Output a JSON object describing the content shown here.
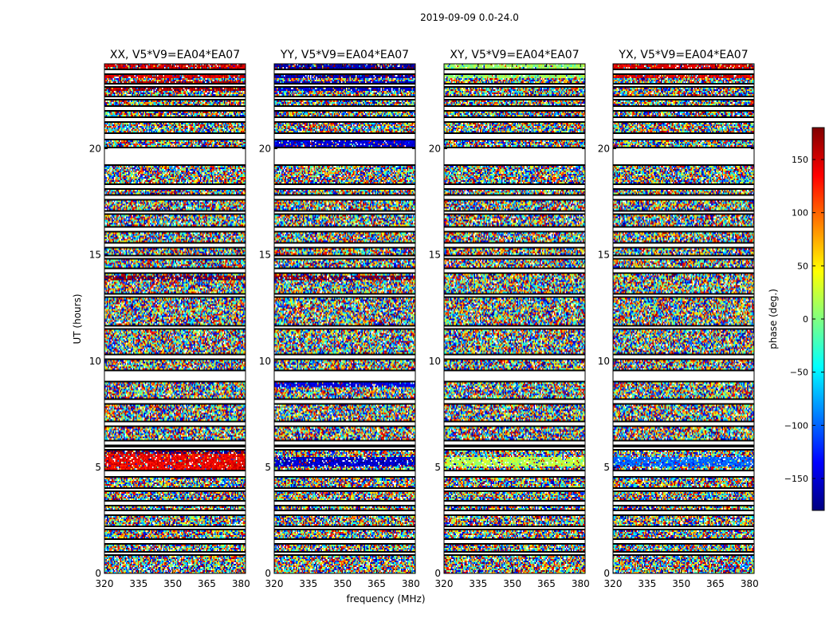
{
  "figure": {
    "suptitle": "2019-09-09 0.0-24.0"
  },
  "chart_data": {
    "type": "heatmap",
    "xlabel": "frequency (MHz)",
    "ylabel": "UT (hours)",
    "xlim": [
      320,
      382
    ],
    "ylim": [
      0,
      24
    ],
    "xticks": [
      320,
      335,
      350,
      365,
      380
    ],
    "yticks": [
      0,
      5,
      10,
      15,
      20
    ],
    "panels": [
      {
        "title": "XX, V5*V9=EA04*EA07",
        "show_yticklabels": true,
        "coherent_bands": [
          [
            23.3,
            24.0,
            150
          ],
          [
            22.7,
            23.2,
            165
          ],
          [
            4.9,
            5.6,
            140
          ],
          [
            5.6,
            5.8,
            175
          ],
          [
            13.8,
            14.0,
            175
          ]
        ]
      },
      {
        "title": "YY, V5*V9=EA04*EA07",
        "show_yticklabels": true,
        "coherent_bands": [
          [
            23.3,
            24.0,
            -165
          ],
          [
            22.7,
            23.2,
            -155
          ],
          [
            19.9,
            20.4,
            -150
          ],
          [
            8.8,
            9.1,
            -145
          ],
          [
            5.0,
            5.5,
            -155
          ],
          [
            13.8,
            14.0,
            175
          ]
        ]
      },
      {
        "title": "XY, V5*V9=EA04*EA07",
        "show_yticklabels": true,
        "coherent_bands": [
          [
            23.3,
            24.0,
            10
          ],
          [
            5.0,
            5.5,
            20
          ]
        ]
      },
      {
        "title": "YX, V5*V9=EA04*EA07",
        "show_yticklabels": true,
        "coherent_bands": [
          [
            23.3,
            24.0,
            145
          ],
          [
            5.0,
            5.5,
            -100
          ]
        ]
      }
    ],
    "flagged_ranges": [
      [
        23.55,
        23.7
      ],
      [
        22.95,
        23.05
      ],
      [
        22.35,
        22.45
      ],
      [
        21.8,
        21.95
      ],
      [
        21.3,
        21.45
      ],
      [
        20.5,
        20.7
      ],
      [
        19.3,
        20.0
      ],
      [
        18.15,
        18.3
      ],
      [
        17.6,
        17.75
      ],
      [
        16.95,
        17.05
      ],
      [
        16.1,
        16.25
      ],
      [
        15.35,
        15.5
      ],
      [
        14.85,
        14.95
      ],
      [
        14.2,
        14.35
      ],
      [
        13.05,
        13.15
      ],
      [
        11.55,
        11.65
      ],
      [
        10.15,
        10.25
      ],
      [
        9.1,
        9.55
      ],
      [
        8.05,
        8.15
      ],
      [
        7.0,
        7.1
      ],
      [
        6.1,
        6.25
      ],
      [
        5.85,
        5.95
      ],
      [
        4.55,
        4.8
      ],
      [
        3.9,
        4.0
      ],
      [
        3.25,
        3.35
      ],
      [
        2.8,
        2.9
      ],
      [
        2.1,
        2.2
      ],
      [
        1.45,
        1.6
      ],
      [
        0.9,
        1.0
      ]
    ],
    "colorbar": {
      "label": "phase (deg.)",
      "range": [
        -180,
        180
      ],
      "ticks": [
        150,
        100,
        50,
        0,
        -50,
        -100,
        -150
      ],
      "tick_labels": [
        "150",
        "100",
        "50",
        "0",
        "−50",
        "−100",
        "−150"
      ],
      "colormap": "jet"
    }
  }
}
